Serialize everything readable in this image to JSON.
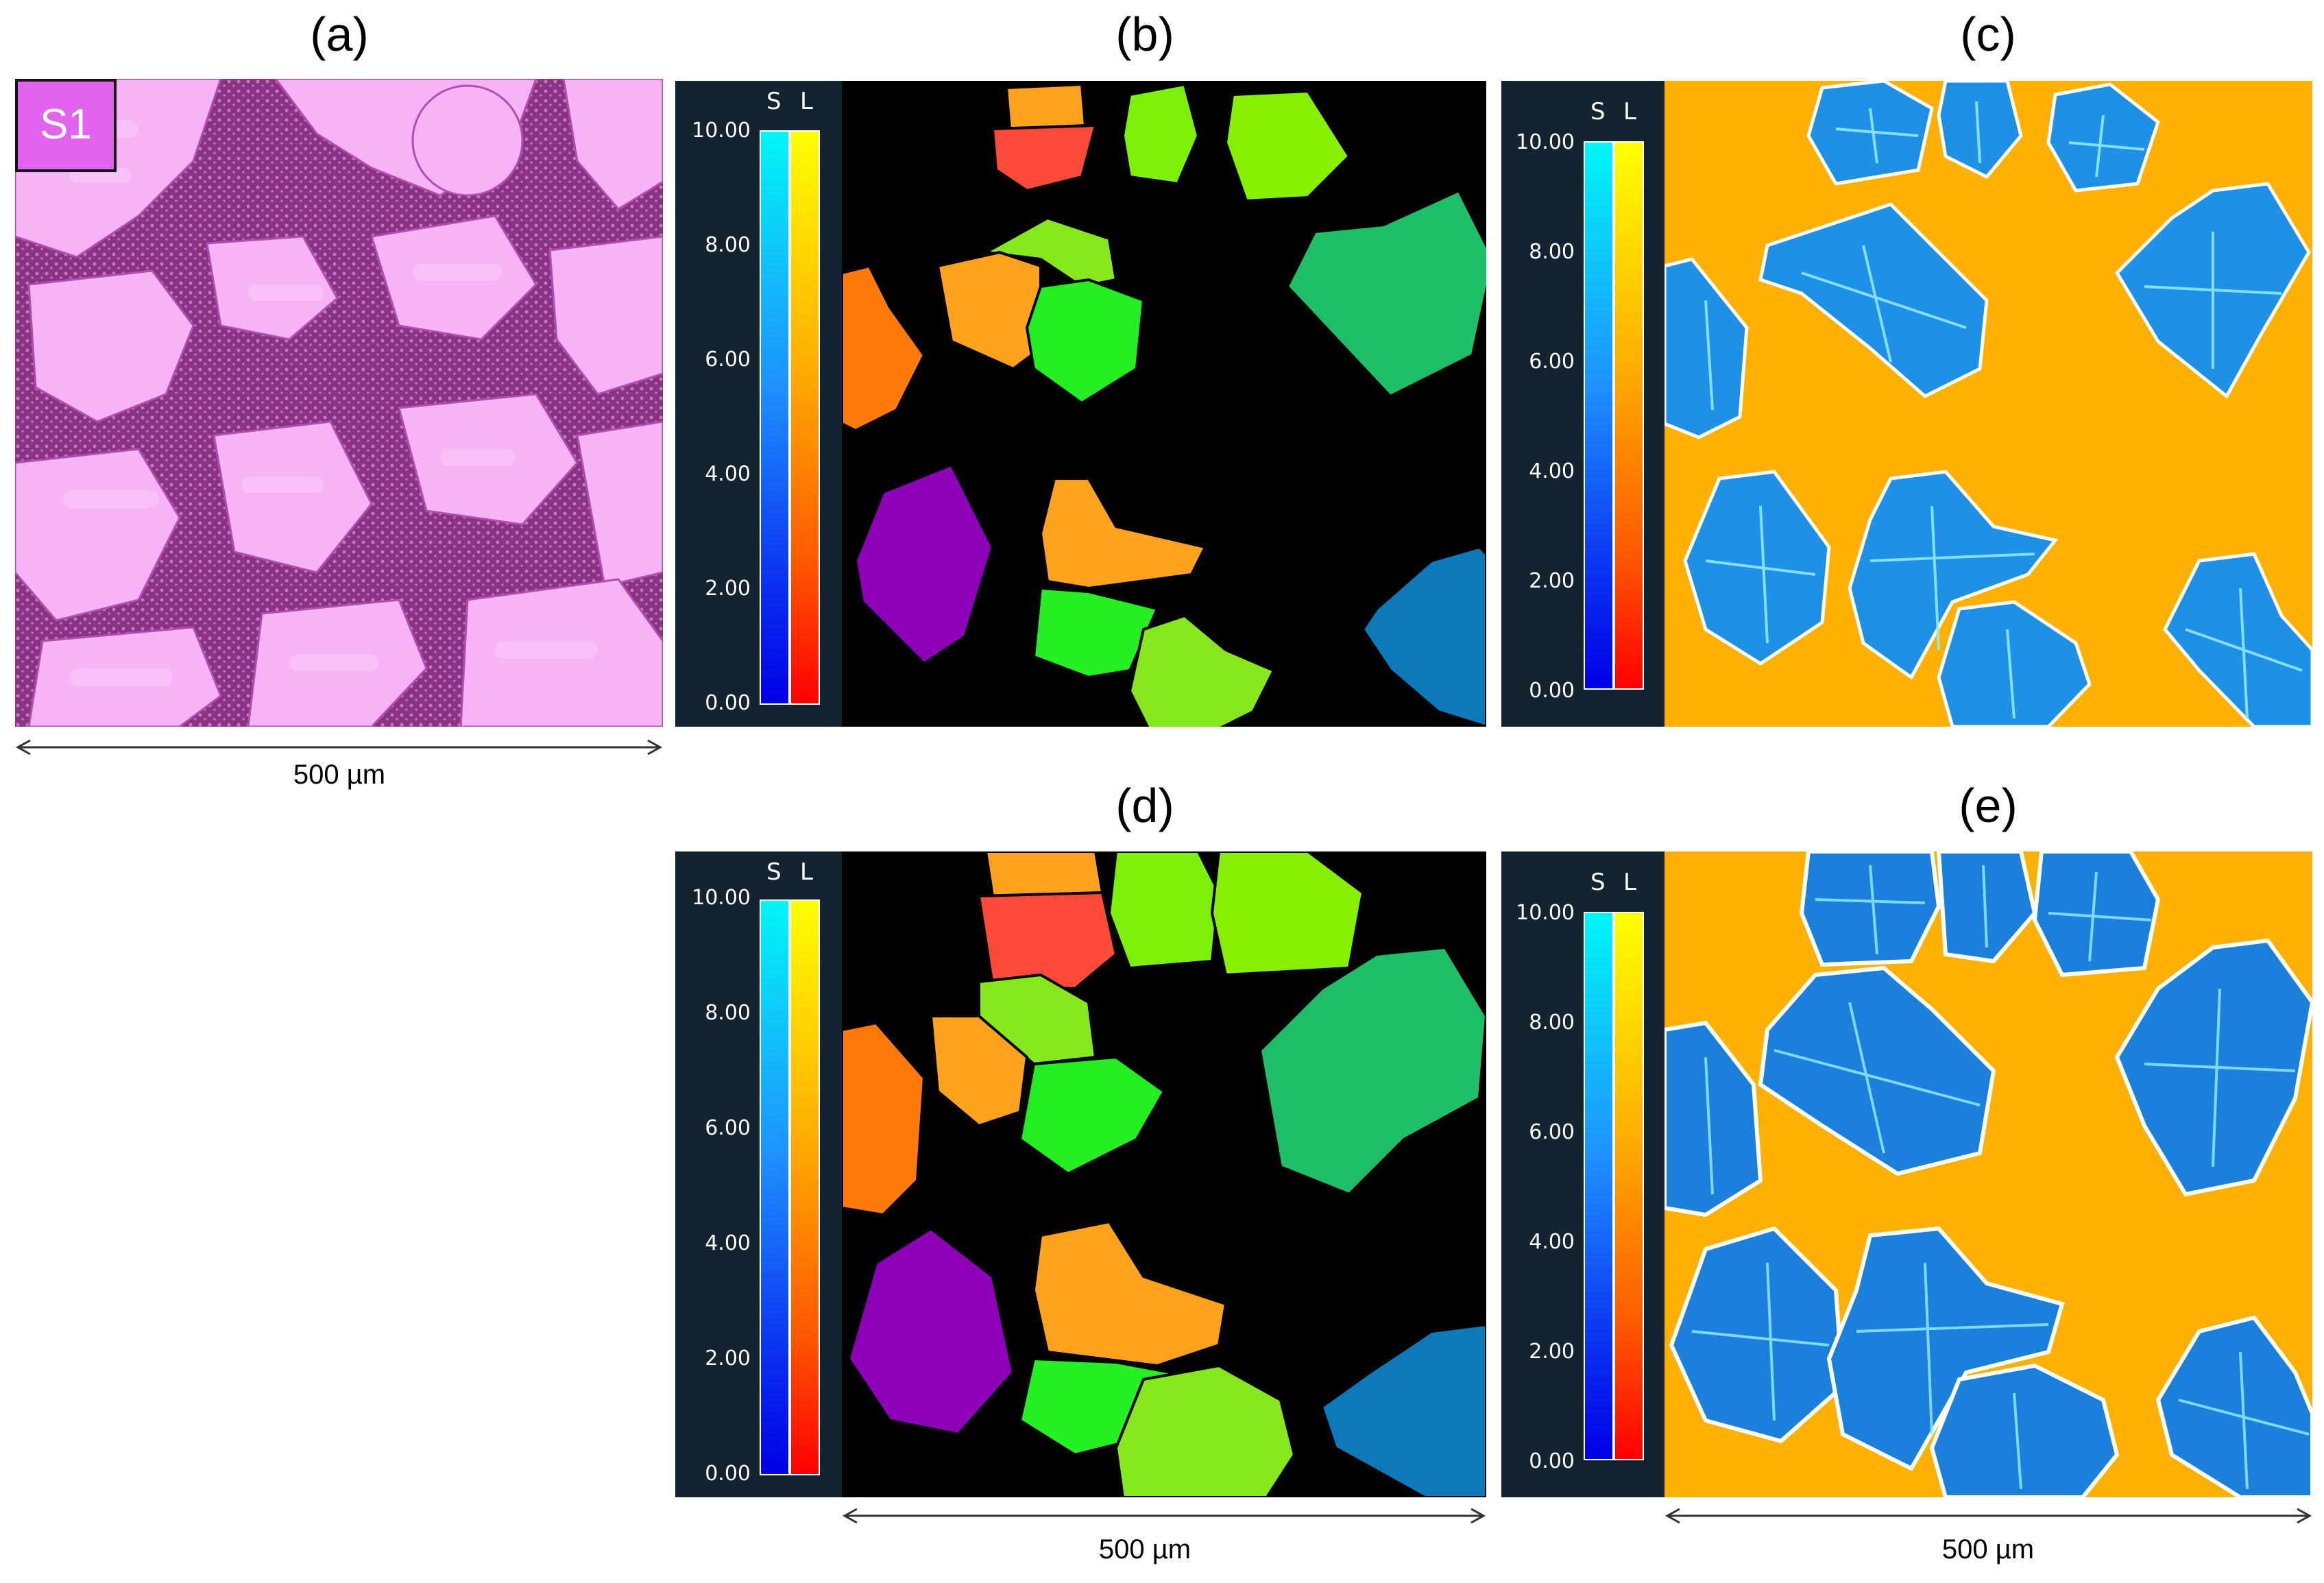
{
  "panels": {
    "a": {
      "label": "(a)",
      "sample_badge": "S1",
      "scale": "500 µm"
    },
    "b": {
      "label": "(b)"
    },
    "c": {
      "label": "(c)"
    },
    "d": {
      "label": "(d)",
      "scale": "500 µm"
    },
    "e": {
      "label": "(e)",
      "scale": "500 µm"
    }
  },
  "legend": {
    "col_s": "S",
    "col_l": "L",
    "ticks": [
      "10.00",
      "8.00",
      "6.00",
      "4.00",
      "2.00",
      "0.00"
    ]
  },
  "colors": {
    "micrograph_pink": "#f2a6f4",
    "micrograph_dark": "#7a2a74",
    "grain_background": "#000000",
    "liquid_orange": "#ffb000",
    "solid_blue": "#1e90e6",
    "legend_bg": "#132330"
  }
}
